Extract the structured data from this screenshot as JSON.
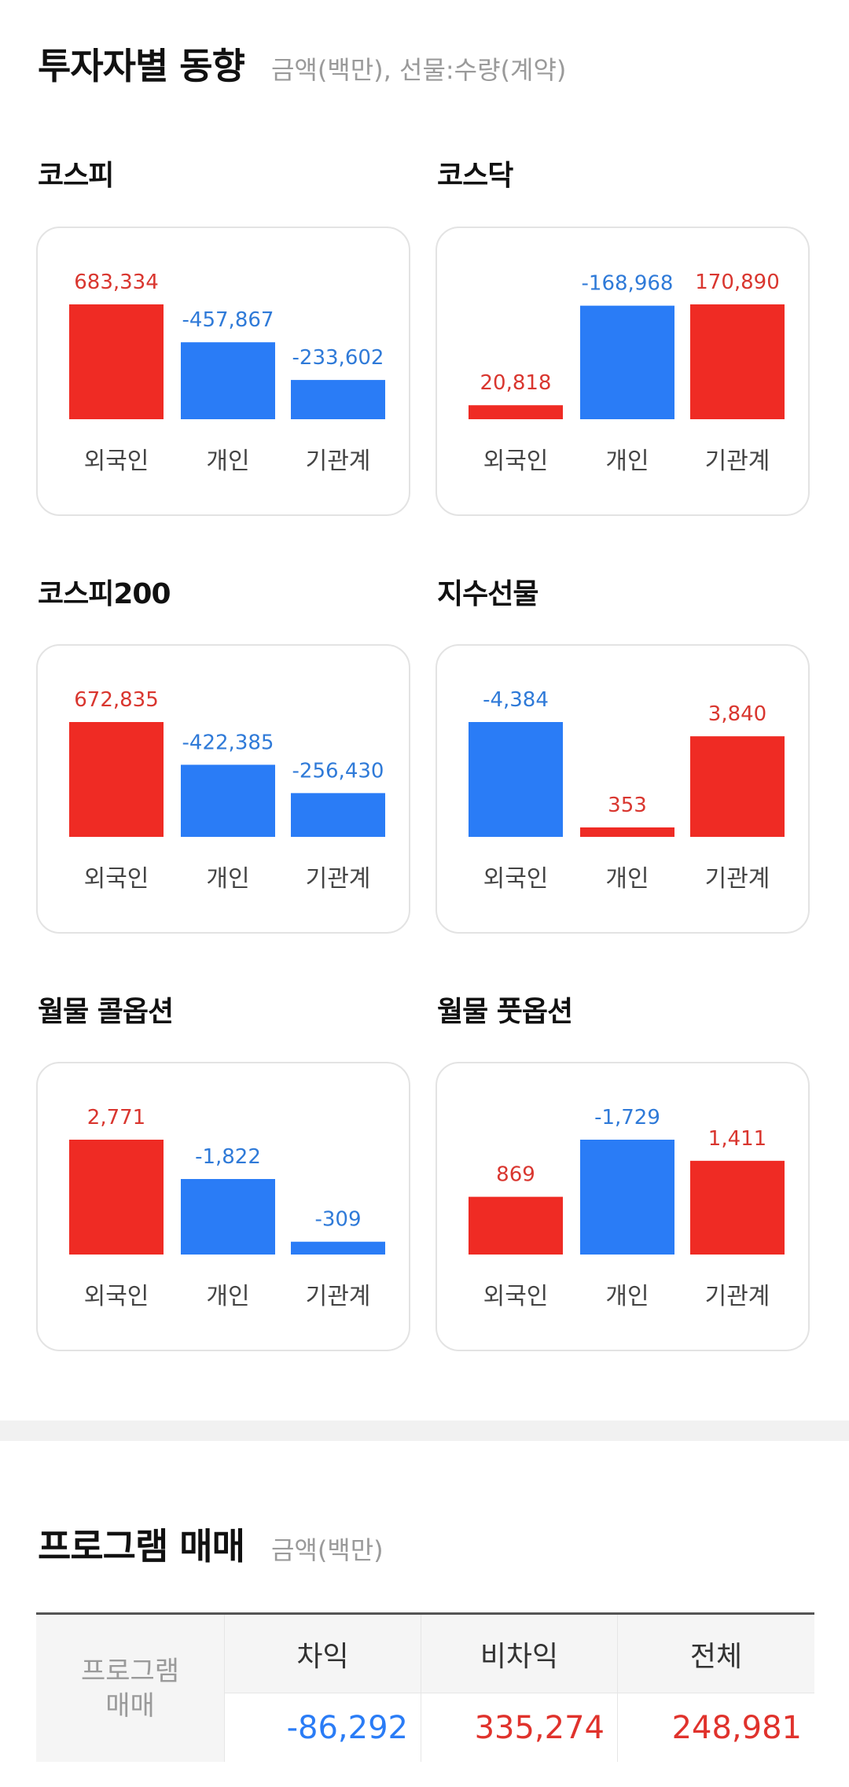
{
  "header": {
    "title": "투자자별 동향",
    "subtitle": "금액(백만), 선물:수량(계약)"
  },
  "colors": {
    "positive": "#ef2b24",
    "negative": "#2a7cf6"
  },
  "chart_data": [
    {
      "type": "bar",
      "title": "코스피",
      "categories": [
        "외국인",
        "개인",
        "기관계"
      ],
      "values": [
        683334,
        -457867,
        -233602
      ],
      "labels": [
        "683,334",
        "-457,867",
        "-233,602"
      ]
    },
    {
      "type": "bar",
      "title": "코스닥",
      "categories": [
        "외국인",
        "개인",
        "기관계"
      ],
      "values": [
        20818,
        -168968,
        170890
      ],
      "labels": [
        "20,818",
        "-168,968",
        "170,890"
      ]
    },
    {
      "type": "bar",
      "title": "코스피200",
      "categories": [
        "외국인",
        "개인",
        "기관계"
      ],
      "values": [
        672835,
        -422385,
        -256430
      ],
      "labels": [
        "672,835",
        "-422,385",
        "-256,430"
      ]
    },
    {
      "type": "bar",
      "title": "지수선물",
      "categories": [
        "외국인",
        "개인",
        "기관계"
      ],
      "values": [
        -4384,
        353,
        3840
      ],
      "labels": [
        "-4,384",
        "353",
        "3,840"
      ]
    },
    {
      "type": "bar",
      "title": "월물 콜옵션",
      "categories": [
        "외국인",
        "개인",
        "기관계"
      ],
      "values": [
        2771,
        -1822,
        -309
      ],
      "labels": [
        "2,771",
        "-1,822",
        "-309"
      ]
    },
    {
      "type": "bar",
      "title": "월물 풋옵션",
      "categories": [
        "외국인",
        "개인",
        "기관계"
      ],
      "values": [
        869,
        -1729,
        1411
      ],
      "labels": [
        "869",
        "-1,729",
        "1,411"
      ]
    }
  ],
  "program": {
    "title": "프로그램 매매",
    "subtitle": "금액(백만)",
    "row_label_1": "프로그램",
    "row_label_2": "매매",
    "columns": [
      {
        "header": "차익",
        "value": "-86,292",
        "sign": "negative"
      },
      {
        "header": "비차익",
        "value": "335,274",
        "sign": "positive"
      },
      {
        "header": "전체",
        "value": "248,981",
        "sign": "positive"
      }
    ]
  }
}
